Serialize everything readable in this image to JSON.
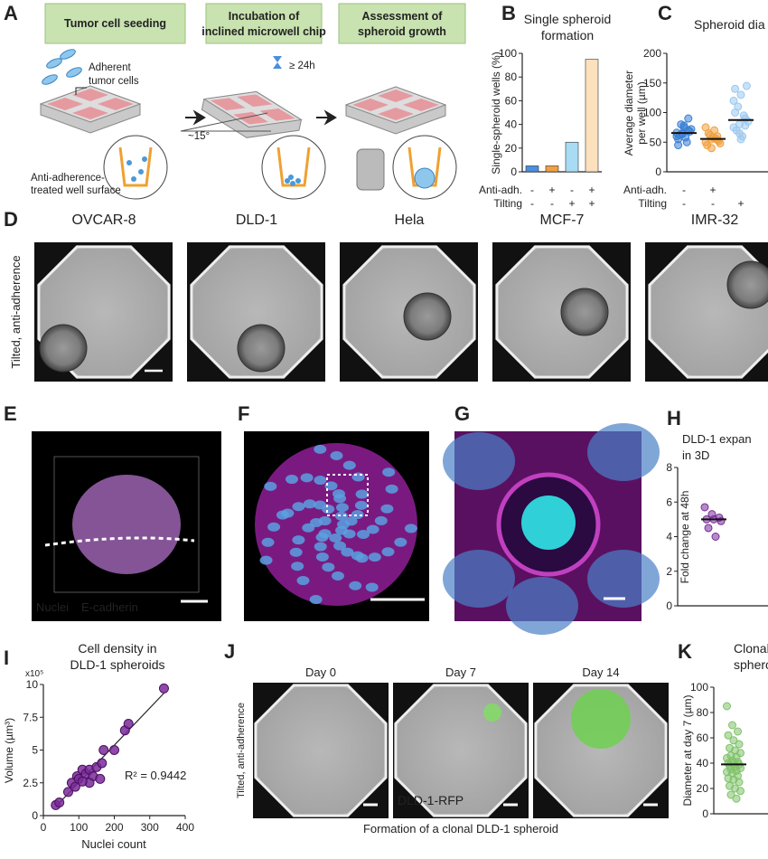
{
  "A": {
    "letter": "A",
    "steps": [
      [
        "Tumor cell seeding"
      ],
      [
        "Incubation of",
        "inclined microwell chip"
      ],
      [
        "Assessment of",
        "spheroid growth"
      ]
    ],
    "cells": [
      "Adherent",
      "tumor cells"
    ],
    "time": "≥ 24h",
    "angle": "~15°",
    "surface": [
      "Anti-adherence-",
      "treated well surface"
    ]
  },
  "B": {
    "letter": "B",
    "type": "bar",
    "title": [
      "Single spheroid",
      "formation"
    ],
    "y_label": "Single-spheroid wells (%)",
    "ylim": [
      0,
      100
    ],
    "yticks": [
      0,
      20,
      40,
      60,
      80,
      100
    ],
    "values": [
      5,
      5,
      25,
      95
    ],
    "colors": [
      "#4a8fe0",
      "#f0a040",
      "#a8dcf5",
      "#fde0bc"
    ],
    "conditions": [
      {
        "name": "Anti-adh.",
        "values": [
          "-",
          "+",
          "-",
          "+"
        ]
      },
      {
        "name": "Tilting",
        "values": [
          "-",
          "-",
          "+",
          "+"
        ]
      }
    ]
  },
  "C": {
    "letter": "C",
    "type": "dot",
    "title": [
      "Spheroid dia"
    ],
    "y_label": [
      "Average diameter",
      "per well (µm)"
    ],
    "ylim": [
      0,
      200
    ],
    "yticks": [
      0,
      50,
      100,
      150,
      200
    ],
    "series": [
      {
        "color": "#3b7fd4",
        "values": [
          60,
          65,
          70,
          55,
          75,
          68,
          62,
          58,
          72,
          80,
          50,
          66,
          64,
          90,
          45,
          78
        ]
      },
      {
        "color": "#f0a040",
        "values": [
          50,
          55,
          60,
          45,
          58,
          52,
          65,
          70,
          48,
          62,
          56,
          75,
          40,
          54
        ]
      },
      {
        "color": "#9cc8ef",
        "values": [
          75,
          80,
          90,
          100,
          130,
          145,
          70,
          60,
          85,
          110,
          95,
          120,
          65,
          78,
          140,
          55
        ]
      }
    ],
    "conditions": [
      {
        "name": "Anti-adh.",
        "values": [
          "-",
          "+",
          null
        ]
      },
      {
        "name": "Tilting",
        "values": [
          "-",
          "-",
          "+"
        ]
      }
    ]
  },
  "D": {
    "letter": "D",
    "side_label": "Tilted, anti-adherence",
    "lines": [
      "OVCAR-8",
      "DLD-1",
      "Hela",
      "MCF-7",
      "IMR-32"
    ]
  },
  "E": {
    "letter": "E",
    "stains": [
      "Nuclei",
      "E-cadherin"
    ]
  },
  "F": {
    "letter": "F"
  },
  "G": {
    "letter": "G"
  },
  "H": {
    "letter": "H",
    "type": "dot",
    "title": [
      "DLD-1 expan",
      "in 3D"
    ],
    "y_label": [
      "Fold change at 48h"
    ],
    "ylim": [
      0,
      8
    ],
    "yticks": [
      0,
      2,
      4,
      6,
      8
    ],
    "series": [
      {
        "color": "#7a2a9a",
        "values": [
          5.7,
          5.3,
          5.1,
          5.0,
          5.0,
          4.9,
          4.5,
          4.0
        ]
      }
    ]
  },
  "I": {
    "letter": "I",
    "type": "scatter",
    "title": [
      "Cell density in",
      "DLD-1 spheroids"
    ],
    "x_label": "Nuclei count",
    "y_label": "Volume (µm³)",
    "y_multiplier": "x10⁵",
    "annotation": "R² = 0.9442",
    "xlim": [
      0,
      400
    ],
    "xticks": [
      0,
      100,
      200,
      300,
      400
    ],
    "ylim": [
      0,
      10
    ],
    "yticks": [
      0,
      2.5,
      5,
      7.5,
      10
    ],
    "color": "#7a2a9a",
    "x": [
      35,
      45,
      70,
      80,
      90,
      95,
      100,
      110,
      120,
      130,
      140,
      150,
      160,
      165,
      170,
      200,
      230,
      240,
      340,
      130,
      110
    ],
    "y": [
      0.8,
      1.0,
      1.8,
      2.5,
      2.2,
      3.0,
      2.8,
      3.5,
      3.2,
      3.5,
      3.0,
      3.7,
      2.8,
      4.0,
      5.0,
      5.0,
      6.5,
      7.0,
      9.7,
      2.5,
      2.6
    ]
  },
  "J": {
    "letter": "J",
    "days": [
      "Day 0",
      "Day 7",
      "Day 14"
    ],
    "side_label": "Tilted, anti-adherence",
    "cell_label": "DLD-1-RFP",
    "caption": "Formation of a clonal DLD-1 spheroid"
  },
  "K": {
    "letter": "K",
    "type": "dot",
    "title": [
      "Clonal",
      "spheroids"
    ],
    "y_label": [
      "Diameter at day 7 (µm)"
    ],
    "ylim": [
      0,
      100
    ],
    "yticks": [
      0,
      20,
      40,
      60,
      80,
      100
    ],
    "series": [
      {
        "color": "#7fc26a",
        "values": [
          85,
          70,
          65,
          62,
          58,
          55,
          52,
          50,
          48,
          46,
          45,
          44,
          42,
          41,
          40,
          40,
          39,
          38,
          37,
          36,
          35,
          34,
          33,
          32,
          30,
          28,
          27,
          25,
          22,
          20,
          18,
          15,
          12
        ]
      }
    ]
  }
}
